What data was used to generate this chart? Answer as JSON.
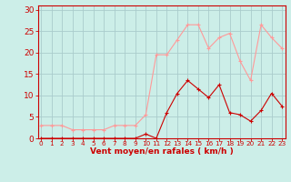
{
  "x": [
    0,
    1,
    2,
    3,
    4,
    5,
    6,
    7,
    8,
    9,
    10,
    11,
    12,
    13,
    14,
    15,
    16,
    17,
    18,
    19,
    20,
    21,
    22,
    23
  ],
  "y_mean": [
    0,
    0,
    0,
    0,
    0,
    0,
    0,
    0,
    0,
    0,
    1,
    0,
    6,
    10.5,
    13.5,
    11.5,
    9.5,
    12.5,
    6,
    5.5,
    4,
    6.5,
    10.5,
    7.5
  ],
  "y_gust": [
    3,
    3,
    3,
    2,
    2,
    2,
    2,
    3,
    3,
    3,
    5.5,
    19.5,
    19.5,
    23,
    26.5,
    26.5,
    21,
    23.5,
    24.5,
    18,
    13.5,
    26.5,
    23.5,
    21
  ],
  "bg_color": "#cceee8",
  "grid_color": "#aacccc",
  "line_mean_color": "#cc0000",
  "line_gust_color": "#ff9999",
  "marker": "+",
  "marker_size": 3,
  "marker_edge_width": 0.8,
  "line_width": 0.8,
  "ylabel_ticks": [
    0,
    5,
    10,
    15,
    20,
    25,
    30
  ],
  "ylim": [
    0,
    31
  ],
  "xlim": [
    -0.3,
    23.3
  ],
  "xlabel": "Vent moyen/en rafales ( km/h )",
  "xlabel_color": "#cc0000",
  "tick_color": "#cc0000",
  "axis_color": "#cc0000",
  "ytick_fontsize": 6.5,
  "xtick_fontsize": 5.2,
  "xlabel_fontsize": 6.5
}
